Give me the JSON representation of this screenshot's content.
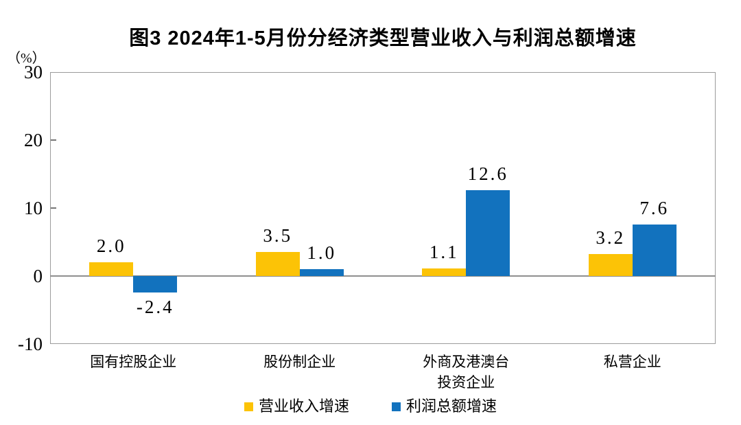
{
  "chart_data": {
    "type": "bar",
    "title": "图3  2024年1-5月份分经济类型营业收入与利润总额增速",
    "unit_label": "（%）",
    "categories": [
      {
        "lines": [
          "国有控股企业"
        ]
      },
      {
        "lines": [
          "股份制企业"
        ]
      },
      {
        "lines": [
          "外商及港澳台",
          "投资企业"
        ]
      },
      {
        "lines": [
          "私营企业"
        ]
      }
    ],
    "series": [
      {
        "name": "营业收入增速",
        "color": "#FCC306",
        "values": [
          2.0,
          3.5,
          1.1,
          3.2
        ]
      },
      {
        "name": "利润总额增速",
        "color": "#1272BE",
        "values": [
          -2.4,
          1.0,
          12.6,
          7.6
        ]
      }
    ],
    "value_labels": [
      "2.0",
      "-2.4",
      "3.5",
      "1.0",
      "1.1",
      "12.6",
      "3.2",
      "7.6"
    ],
    "ylim": [
      -10,
      30
    ],
    "yticks": [
      30,
      20,
      10,
      0,
      -10
    ],
    "grid": false,
    "legend_position": "bottom",
    "axis_color": "#9b9b9b",
    "zero_line_color": "#8f8f8f"
  }
}
